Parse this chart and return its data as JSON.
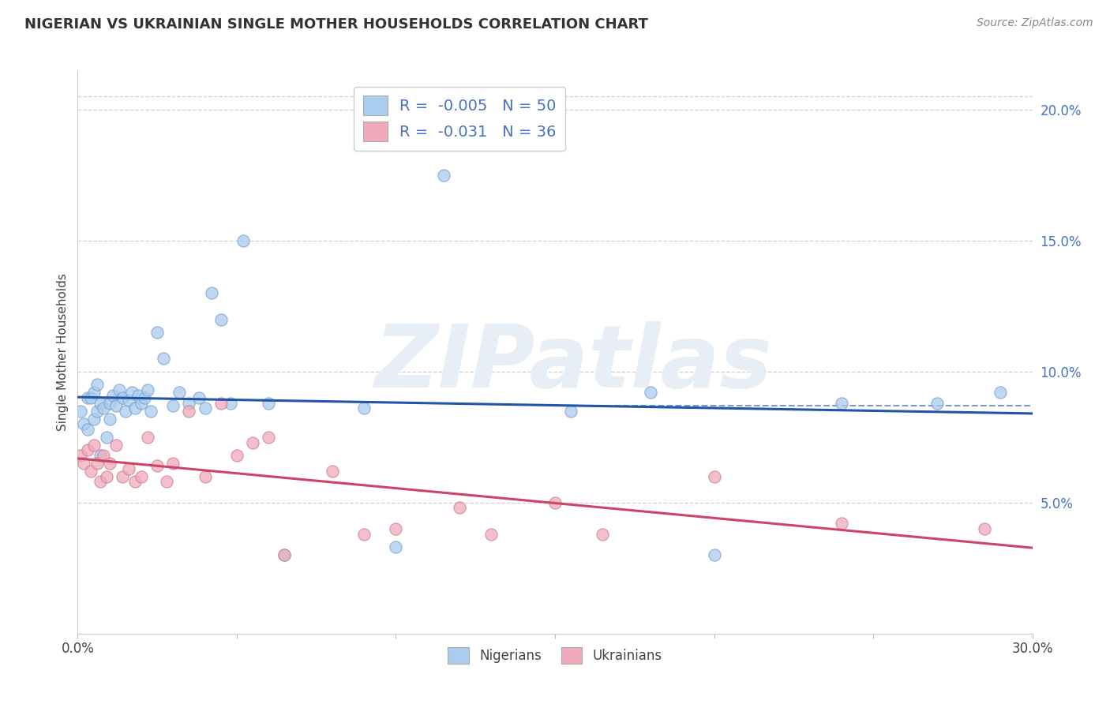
{
  "title": "NIGERIAN VS UKRAINIAN SINGLE MOTHER HOUSEHOLDS CORRELATION CHART",
  "source": "Source: ZipAtlas.com",
  "ylabel": "Single Mother Households",
  "xmin": 0.0,
  "xmax": 0.3,
  "ymin": 0.0,
  "ymax": 0.215,
  "yticks": [
    0.05,
    0.1,
    0.15,
    0.2
  ],
  "ytick_labels": [
    "5.0%",
    "10.0%",
    "15.0%",
    "20.0%"
  ],
  "grid_color": "#d0d0d0",
  "watermark_text": "ZIPatlas",
  "legend_r1": "-0.005",
  "legend_n1": "50",
  "legend_r2": "-0.031",
  "legend_n2": "36",
  "nigerian_color": "#aaccee",
  "ukrainian_color": "#f0aabb",
  "nigerian_line_color": "#2255aa",
  "ukrainian_line_color": "#cc4466",
  "dashed_line_y": 0.087,
  "nigerian_scatter_x": [
    0.001,
    0.002,
    0.003,
    0.003,
    0.004,
    0.005,
    0.005,
    0.006,
    0.006,
    0.007,
    0.007,
    0.008,
    0.009,
    0.01,
    0.01,
    0.011,
    0.012,
    0.013,
    0.014,
    0.015,
    0.016,
    0.017,
    0.018,
    0.019,
    0.02,
    0.021,
    0.022,
    0.023,
    0.025,
    0.027,
    0.03,
    0.032,
    0.035,
    0.038,
    0.04,
    0.042,
    0.045,
    0.048,
    0.052,
    0.06,
    0.065,
    0.09,
    0.1,
    0.115,
    0.155,
    0.18,
    0.2,
    0.24,
    0.27,
    0.29
  ],
  "nigerian_scatter_y": [
    0.085,
    0.08,
    0.09,
    0.078,
    0.09,
    0.082,
    0.092,
    0.085,
    0.095,
    0.088,
    0.068,
    0.086,
    0.075,
    0.088,
    0.082,
    0.091,
    0.087,
    0.093,
    0.09,
    0.085,
    0.089,
    0.092,
    0.086,
    0.091,
    0.088,
    0.09,
    0.093,
    0.085,
    0.115,
    0.105,
    0.087,
    0.092,
    0.088,
    0.09,
    0.086,
    0.13,
    0.12,
    0.088,
    0.15,
    0.088,
    0.03,
    0.086,
    0.033,
    0.175,
    0.085,
    0.092,
    0.03,
    0.088,
    0.088,
    0.092
  ],
  "ukrainian_scatter_x": [
    0.001,
    0.002,
    0.003,
    0.004,
    0.005,
    0.006,
    0.007,
    0.008,
    0.009,
    0.01,
    0.012,
    0.014,
    0.016,
    0.018,
    0.02,
    0.022,
    0.025,
    0.028,
    0.03,
    0.035,
    0.04,
    0.045,
    0.05,
    0.055,
    0.06,
    0.065,
    0.08,
    0.09,
    0.1,
    0.12,
    0.13,
    0.15,
    0.165,
    0.2,
    0.24,
    0.285
  ],
  "ukrainian_scatter_y": [
    0.068,
    0.065,
    0.07,
    0.062,
    0.072,
    0.065,
    0.058,
    0.068,
    0.06,
    0.065,
    0.072,
    0.06,
    0.063,
    0.058,
    0.06,
    0.075,
    0.064,
    0.058,
    0.065,
    0.085,
    0.06,
    0.088,
    0.068,
    0.073,
    0.075,
    0.03,
    0.062,
    0.038,
    0.04,
    0.048,
    0.038,
    0.05,
    0.038,
    0.06,
    0.042,
    0.04
  ]
}
